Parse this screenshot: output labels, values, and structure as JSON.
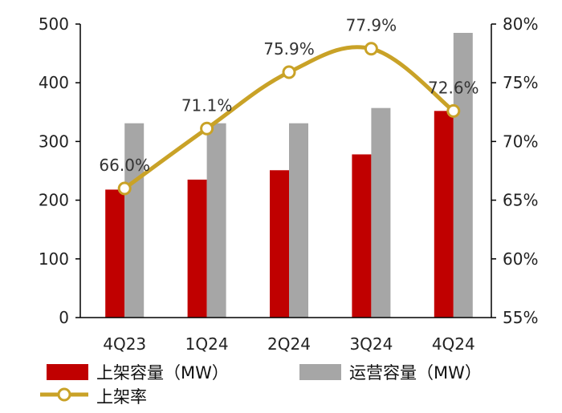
{
  "chart_data": {
    "type": "bar",
    "categories": [
      "4Q23",
      "1Q24",
      "2Q24",
      "3Q24",
      "4Q24"
    ],
    "series": [
      {
        "name": "上架容量（MW）",
        "type": "bar",
        "axis": "left",
        "color": "#c00000",
        "values": [
          218,
          235,
          251,
          278,
          352
        ]
      },
      {
        "name": "运营容量（MW）",
        "type": "bar",
        "axis": "left",
        "color": "#a6a6a6",
        "values": [
          331,
          331,
          331,
          357,
          485
        ]
      },
      {
        "name": "上架率",
        "type": "line",
        "axis": "right",
        "color": "#c9a227",
        "values": [
          66.0,
          71.1,
          75.9,
          77.9,
          72.6
        ],
        "labels": [
          "66.0%",
          "71.1%",
          "75.9%",
          "77.9%",
          "72.6%"
        ]
      }
    ],
    "y_left": {
      "min": 0,
      "max": 500,
      "ticks": [
        "0",
        "100",
        "200",
        "300",
        "400",
        "500"
      ]
    },
    "y_right": {
      "min": 55,
      "max": 80,
      "ticks": [
        "55%",
        "60%",
        "65%",
        "70%",
        "75%",
        "80%"
      ]
    },
    "grid": false,
    "legend_position": "bottom"
  }
}
